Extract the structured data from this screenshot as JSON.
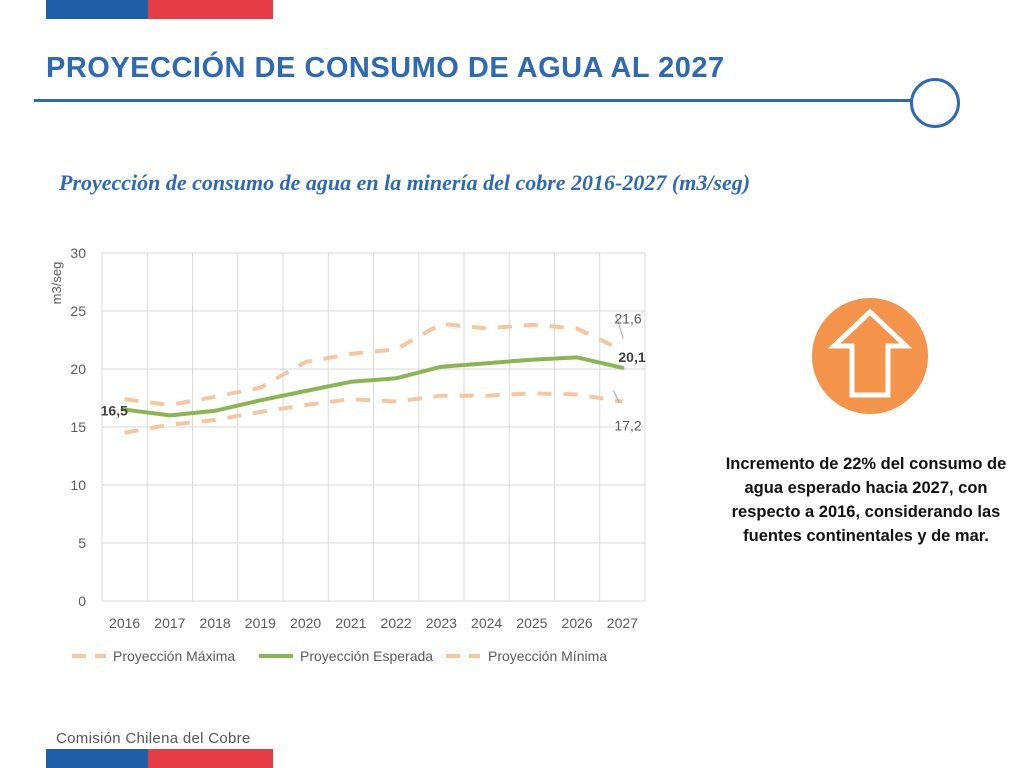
{
  "page": {
    "title": "PROYECCIÓN DE CONSUMO DE AGUA AL 2027",
    "footer": "Comisión Chilena del Cobre",
    "note": "Incremento de 22% del consumo de agua esperado hacia 2027, con respecto a 2016, considerando las fuentes continentales y de mar."
  },
  "colors": {
    "brand_blue": "#2e69b3",
    "flag_blue": "#1f5fa8",
    "flag_red": "#e63c46",
    "arrow_orange": "#f4934a",
    "series_max": "#f6c6a1",
    "series_expected": "#8bb552",
    "series_min": "#f6c6a1"
  },
  "icons": {
    "trend": "up-arrow-icon"
  },
  "chart_data": {
    "type": "line",
    "title": "Proyección de consumo de agua en la minería del cobre 2016-2027 (m3/seg)",
    "xlabel": "",
    "ylabel": "m3/seg",
    "categories": [
      "2016",
      "2017",
      "2018",
      "2019",
      "2020",
      "2021",
      "2022",
      "2023",
      "2024",
      "2025",
      "2026",
      "2027"
    ],
    "ylim": [
      0,
      30
    ],
    "yticks": [
      0,
      5,
      10,
      15,
      20,
      25,
      30
    ],
    "grid": true,
    "legend_position": "bottom",
    "series": [
      {
        "name": "Proyección Máxima",
        "style": "dashed",
        "values": [
          17.4,
          16.9,
          17.6,
          18.4,
          20.6,
          21.3,
          21.7,
          23.9,
          23.5,
          23.8,
          23.5,
          21.6
        ]
      },
      {
        "name": "Proyección Esperada",
        "style": "solid",
        "values": [
          16.5,
          16.0,
          16.4,
          17.3,
          18.1,
          18.9,
          19.2,
          20.2,
          20.5,
          20.8,
          21.0,
          20.1
        ]
      },
      {
        "name": "Proyección Mínima",
        "style": "dashed",
        "values": [
          14.5,
          15.2,
          15.6,
          16.3,
          16.9,
          17.4,
          17.2,
          17.7,
          17.7,
          17.9,
          17.8,
          17.2
        ]
      }
    ],
    "data_labels": [
      {
        "series": 1,
        "index": 0,
        "text": "16,5",
        "bold": true
      },
      {
        "series": 0,
        "index": 11,
        "text": "21,6",
        "bold": false
      },
      {
        "series": 1,
        "index": 11,
        "text": "20,1",
        "bold": true
      },
      {
        "series": 2,
        "index": 11,
        "text": "17,2",
        "bold": false
      }
    ]
  }
}
